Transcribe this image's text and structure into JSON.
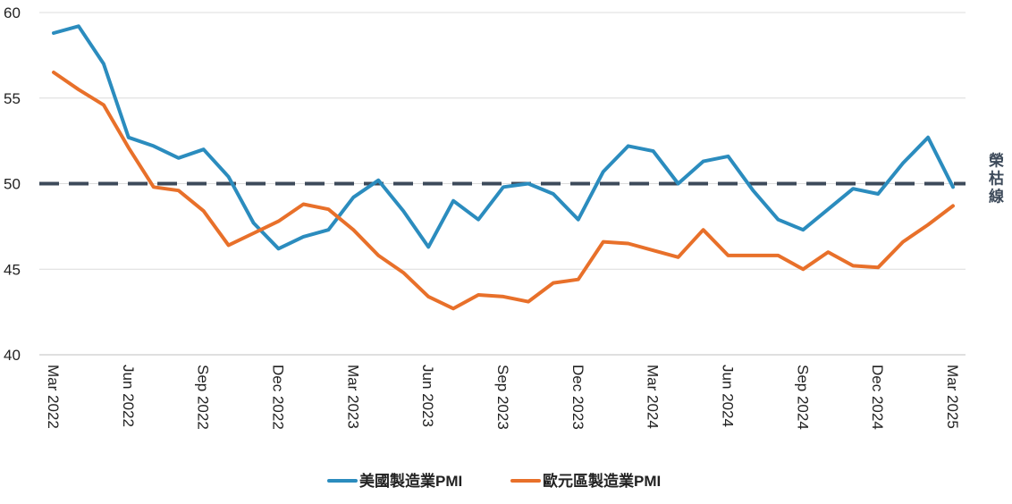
{
  "chart_data": {
    "type": "line",
    "x": [
      "Mar 2022",
      "Apr 2022",
      "May 2022",
      "Jun 2022",
      "Jul 2022",
      "Aug 2022",
      "Sep 2022",
      "Oct 2022",
      "Nov 2022",
      "Dec 2022",
      "Jan 2023",
      "Feb 2023",
      "Mar 2023",
      "Apr 2023",
      "May 2023",
      "Jun 2023",
      "Jul 2023",
      "Aug 2023",
      "Sep 2023",
      "Oct 2023",
      "Nov 2023",
      "Dec 2023",
      "Jan 2024",
      "Feb 2024",
      "Mar 2024",
      "Apr 2024",
      "May 2024",
      "Jun 2024",
      "Jul 2024",
      "Aug 2024",
      "Sep 2024",
      "Oct 2024",
      "Nov 2024",
      "Dec 2024",
      "Jan 2025",
      "Feb 2025",
      "Mar 2025"
    ],
    "x_tick_labels": [
      "Mar 2022",
      "Jun 2022",
      "Sep 2022",
      "Dec 2022",
      "Mar 2023",
      "Jun 2023",
      "Sep 2023",
      "Dec 2023",
      "Mar 2024",
      "Jun 2024",
      "Sep 2024",
      "Dec 2024",
      "Mar 2025"
    ],
    "y_ticks": [
      "40",
      "45",
      "50",
      "55",
      "60"
    ],
    "ylim": [
      40,
      60
    ],
    "series": [
      {
        "name": "美國製造業PMI",
        "color": "#2b8cbe",
        "values": [
          58.8,
          59.2,
          57.0,
          52.7,
          52.2,
          51.5,
          52.0,
          50.4,
          47.7,
          46.2,
          46.9,
          47.3,
          49.2,
          50.2,
          48.4,
          46.3,
          49.0,
          47.9,
          49.8,
          50.0,
          49.4,
          47.9,
          50.7,
          52.2,
          51.9,
          50.0,
          51.3,
          51.6,
          49.6,
          47.9,
          47.3,
          48.5,
          49.7,
          49.4,
          51.2,
          52.7,
          49.8
        ]
      },
      {
        "name": "歐元區製造業PMI",
        "color": "#e8702a",
        "values": [
          56.5,
          55.5,
          54.6,
          52.1,
          49.8,
          49.6,
          48.4,
          46.4,
          47.1,
          47.8,
          48.8,
          48.5,
          47.3,
          45.8,
          44.8,
          43.4,
          42.7,
          43.5,
          43.4,
          43.1,
          44.2,
          44.4,
          46.6,
          46.5,
          46.1,
          45.7,
          47.3,
          45.8,
          45.8,
          45.8,
          45.0,
          46.0,
          45.2,
          45.1,
          46.6,
          47.6,
          48.7
        ]
      }
    ],
    "reference_line": {
      "value": 50,
      "label": "榮枯線",
      "color": "#3d4a5a"
    },
    "grid": true,
    "legend": "bottom-center"
  }
}
